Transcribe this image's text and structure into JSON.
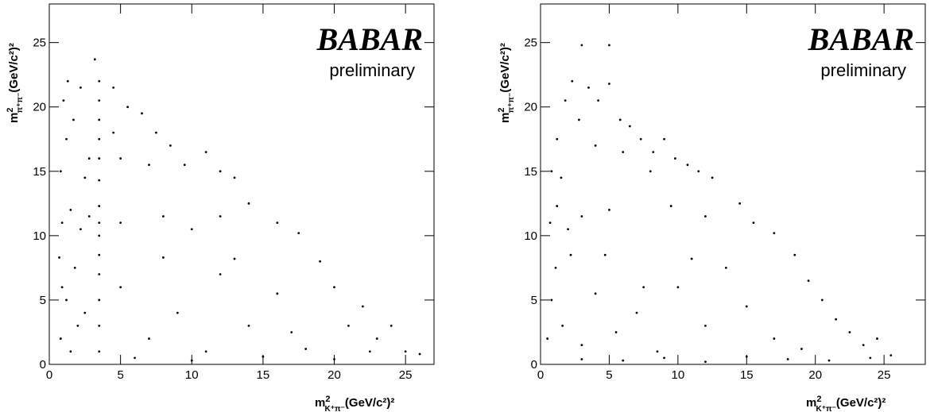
{
  "chart_data": [
    {
      "type": "scatter",
      "color": "#000000",
      "x_label": [
        "m",
        "2",
        "K⁺π⁻",
        "(GeV/c²)²"
      ],
      "y_label": [
        "m",
        "2",
        "π⁺π⁻",
        "(GeV/c²)²"
      ],
      "logo": "BABAR",
      "annotation": "preliminary",
      "xlim": [
        0,
        27
      ],
      "ylim": [
        0,
        28
      ],
      "xticks": [
        0,
        5,
        10,
        15,
        20,
        25
      ],
      "yticks": [
        0,
        5,
        10,
        15,
        20,
        25
      ],
      "x": [
        0.8,
        1.2,
        1.7,
        2.2,
        2.8,
        1.0,
        2.5,
        3.5,
        3.5,
        3.5,
        3.5,
        3.5,
        3.5,
        3.5,
        3.5,
        3.5,
        3.5,
        3.5,
        3.5,
        3.5,
        3.5,
        4.5,
        5.5,
        6.5,
        7.5,
        8.5,
        9.5,
        11,
        12,
        13,
        5,
        7,
        4.5,
        0.9,
        1.5,
        2.2,
        2.8,
        5,
        8,
        10,
        12,
        14,
        16,
        17.5,
        0.8,
        1.2,
        1.8,
        2.5,
        0.7,
        1.5,
        5,
        7,
        9,
        11,
        12,
        14,
        16,
        18,
        19,
        20,
        21,
        22,
        23,
        24,
        25,
        26,
        6,
        10,
        15,
        20,
        13,
        8,
        17,
        22.5,
        3.2,
        1.3,
        0.9,
        2.0
      ],
      "y": [
        15,
        17.5,
        19,
        21.5,
        16,
        20.5,
        14.5,
        14.3,
        16,
        17.5,
        19,
        20.5,
        22,
        11,
        12.3,
        10,
        1,
        3,
        5,
        7,
        8.5,
        21.5,
        20,
        19.5,
        18,
        17,
        15.5,
        16.5,
        15,
        14.5,
        16,
        15.5,
        18,
        11,
        12,
        10.5,
        11.5,
        11,
        11.5,
        10.5,
        11.5,
        12.5,
        11,
        10.2,
        2,
        5,
        7.5,
        4,
        8.3,
        1,
        6,
        2,
        4,
        1,
        7,
        3,
        5.5,
        1.2,
        8,
        6,
        3,
        4.5,
        2,
        3,
        1,
        0.8,
        0.5,
        0.3,
        0.6,
        0.4,
        8.2,
        8.3,
        2.5,
        1,
        23.7,
        22,
        6,
        3
      ]
    },
    {
      "type": "scatter",
      "color": "#000000",
      "x_label": [
        "m",
        "2",
        "K⁺π⁻",
        "(GeV/c²)²"
      ],
      "y_label": [
        "m",
        "2",
        "π⁺π⁻",
        "(GeV/c²)²"
      ],
      "logo": "BABAR",
      "annotation": "preliminary",
      "xlim": [
        0,
        28
      ],
      "ylim": [
        0,
        28
      ],
      "xticks": [
        0,
        5,
        10,
        15,
        20,
        25
      ],
      "yticks": [
        0,
        5,
        10,
        15,
        20,
        25
      ],
      "x": [
        3,
        5,
        0.8,
        1.2,
        1.8,
        2.3,
        2.8,
        3.5,
        4.2,
        5,
        5.8,
        6.5,
        7.3,
        8.2,
        9,
        9.8,
        10.7,
        11.5,
        12.5,
        1.5,
        4,
        6,
        8,
        0.7,
        1.2,
        2,
        3,
        5,
        9.5,
        12,
        14.5,
        15.5,
        17,
        0.5,
        0.8,
        1.1,
        1.6,
        2.2,
        3,
        4,
        5.5,
        7,
        8.5,
        10,
        12,
        13.5,
        15,
        17,
        18.5,
        19.5,
        20.5,
        21.5,
        22.5,
        23.5,
        24.5,
        25.5,
        3,
        6,
        9,
        12,
        15,
        18,
        21,
        24,
        4.7,
        7.5,
        11,
        19
      ],
      "y": [
        24.8,
        24.8,
        15,
        17.5,
        20.5,
        22,
        19,
        21.5,
        20.5,
        21.8,
        19,
        18.5,
        17.5,
        16.5,
        17.5,
        16,
        15.5,
        15,
        14.5,
        14.5,
        17,
        16.5,
        15,
        11,
        12.3,
        10.5,
        11.5,
        12,
        12.3,
        11.5,
        12.5,
        11,
        10.2,
        2,
        5,
        7.5,
        3,
        8.5,
        1.5,
        5.5,
        2.5,
        4,
        1,
        6,
        3,
        7.5,
        4.5,
        2,
        8.5,
        6.5,
        5,
        3.5,
        2.5,
        1.5,
        2,
        0.7,
        0.4,
        0.3,
        0.5,
        0.2,
        0.6,
        0.4,
        0.3,
        0.5,
        8.5,
        6,
        8.2,
        1.2
      ]
    }
  ]
}
